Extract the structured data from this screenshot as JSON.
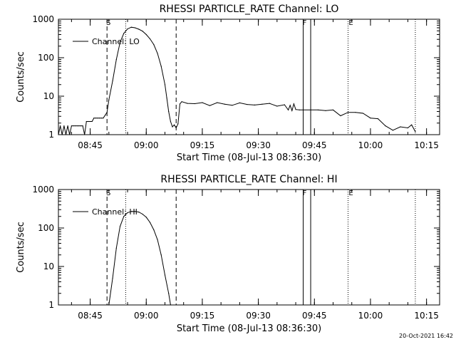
{
  "footer": {
    "timestamp": "20-Oct-2021 16:42"
  },
  "chart_data": [
    {
      "type": "line",
      "title": "RHESSI PARTICLE_RATE Channel: LO",
      "xlabel": "Start Time (08-Jul-13 08:36:30)",
      "ylabel": "Counts/sec",
      "yscale": "log",
      "ylim": [
        1,
        1000
      ],
      "xlim": [
        "08:36:30",
        "10:18:30"
      ],
      "yticks": [
        "1",
        "10",
        "100",
        "1000"
      ],
      "xticks": [
        "08:45",
        "09:00",
        "09:15",
        "09:30",
        "09:45",
        "10:00",
        "10:15"
      ],
      "flag_labels": {
        "S": "S",
        "F": "F",
        "E": "E"
      },
      "markers": {
        "dashed": [
          "08:49:30",
          "09:08:00"
        ],
        "dotted": [
          "08:54:30",
          "09:54:00",
          "10:12:00"
        ],
        "solid": [
          "09:42:00",
          "09:44:00"
        ],
        "S": "08:49:30",
        "F": "09:42:00",
        "E": "09:54:00"
      },
      "legend": {
        "position": "top-left",
        "entries": [
          "Channel: LO"
        ]
      },
      "series": [
        {
          "name": "Channel: LO",
          "x": [
            "08:36:30",
            "08:37:00",
            "08:37:30",
            "08:38:00",
            "08:38:30",
            "08:39:00",
            "08:39:30",
            "08:40:00",
            "08:40:30",
            "08:41:00",
            "08:41:30",
            "08:42:00",
            "08:42:30",
            "08:43:00",
            "08:43:30",
            "08:44:00",
            "08:44:30",
            "08:45:00",
            "08:45:30",
            "08:46:00",
            "08:46:30",
            "08:47:00",
            "08:47:30",
            "08:48:00",
            "08:48:30",
            "08:49:00",
            "08:49:30",
            "08:50:00",
            "08:51:00",
            "08:52:00",
            "08:53:00",
            "08:54:00",
            "08:55:00",
            "08:56:00",
            "08:57:00",
            "08:58:00",
            "08:59:00",
            "09:00:00",
            "09:01:00",
            "09:02:00",
            "09:03:00",
            "09:04:00",
            "09:05:00",
            "09:05:30",
            "09:06:00",
            "09:06:30",
            "09:07:00",
            "09:07:30",
            "09:08:00",
            "09:08:30",
            "09:09:00",
            "09:09:30",
            "09:11:00",
            "09:13:00",
            "09:15:00",
            "09:17:00",
            "09:19:00",
            "09:21:00",
            "09:23:00",
            "09:25:00",
            "09:27:00",
            "09:29:00",
            "09:31:00",
            "09:33:00",
            "09:35:00",
            "09:37:00",
            "09:38:00",
            "09:38:30",
            "09:39:00",
            "09:39:30",
            "09:40:00",
            "09:41:00",
            "09:42:00",
            "09:44:00",
            "09:46:00",
            "09:48:00",
            "09:50:00",
            "09:52:00",
            "09:54:00",
            "09:56:00",
            "09:58:00",
            "10:00:00",
            "10:02:00",
            "10:04:00",
            "10:06:00",
            "10:08:00",
            "10:10:00",
            "10:11:00",
            "10:12:00"
          ],
          "y": [
            1,
            1.7,
            1,
            1.7,
            1,
            1.7,
            1,
            1.7,
            1.7,
            1.7,
            1.7,
            1.7,
            1.7,
            1.7,
            1,
            2.2,
            2.2,
            2.2,
            2.2,
            2.7,
            2.7,
            2.7,
            2.7,
            2.7,
            2.7,
            3.2,
            3.8,
            8,
            25,
            90,
            250,
            430,
            560,
            620,
            600,
            550,
            490,
            400,
            310,
            220,
            130,
            60,
            20,
            9,
            4,
            2.2,
            1.6,
            1.8,
            1.5,
            1.9,
            6.3,
            7.2,
            6.5,
            6.4,
            6.8,
            5.7,
            6.8,
            6.2,
            5.8,
            6.7,
            6.1,
            5.9,
            6.2,
            6.5,
            5.5,
            6,
            4.4,
            5.8,
            4.2,
            6.3,
            4.5,
            4.4,
            4.4,
            4.4,
            4.4,
            4.2,
            4.4,
            3.1,
            3.8,
            3.8,
            3.6,
            2.7,
            2.6,
            1.7,
            1.3,
            1.6,
            1.5,
            1.8,
            1.2
          ]
        }
      ]
    },
    {
      "type": "line",
      "title": "RHESSI PARTICLE_RATE Channel: HI",
      "xlabel": "Start Time (08-Jul-13 08:36:30)",
      "ylabel": "Counts/sec",
      "yscale": "log",
      "ylim": [
        1,
        1000
      ],
      "xlim": [
        "08:36:30",
        "10:18:30"
      ],
      "yticks": [
        "1",
        "10",
        "100",
        "1000"
      ],
      "xticks": [
        "08:45",
        "09:00",
        "09:15",
        "09:30",
        "09:45",
        "10:00",
        "10:15"
      ],
      "flag_labels": {
        "S": "S",
        "F": "F",
        "E": "E"
      },
      "markers": {
        "dashed": [
          "08:49:30",
          "09:08:00"
        ],
        "dotted": [
          "08:54:30",
          "09:54:00",
          "10:12:00"
        ],
        "solid": [
          "09:42:00",
          "09:44:00"
        ],
        "S": "08:49:30",
        "F": "09:42:00",
        "E": "09:54:00"
      },
      "legend": {
        "position": "top-left",
        "entries": [
          "Channel: HI"
        ]
      },
      "series": [
        {
          "name": "Channel: HI",
          "x": [
            "08:50:00",
            "08:51:00",
            "08:52:00",
            "08:53:00",
            "08:54:00",
            "08:55:00",
            "08:56:00",
            "08:57:00",
            "08:58:00",
            "08:59:00",
            "09:00:00",
            "09:01:00",
            "09:02:00",
            "09:03:00",
            "09:04:00",
            "09:05:00",
            "09:06:00",
            "09:06:30"
          ],
          "y": [
            1,
            5,
            30,
            110,
            200,
            250,
            270,
            270,
            260,
            230,
            190,
            140,
            90,
            50,
            20,
            6,
            2,
            1
          ]
        }
      ]
    }
  ]
}
